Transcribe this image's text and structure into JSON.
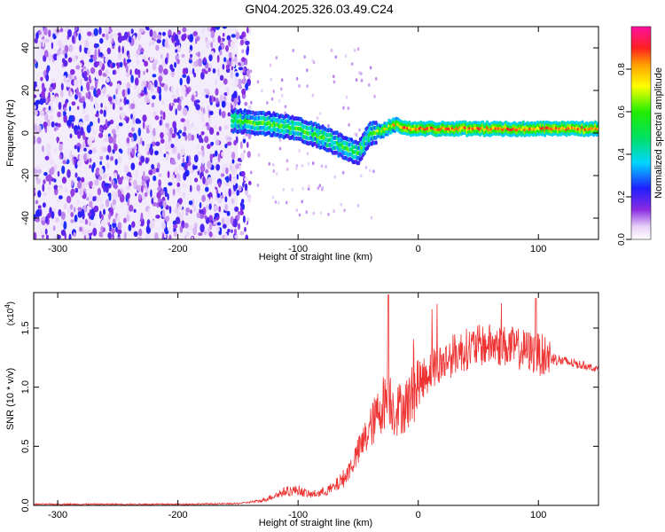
{
  "title": "GN04.2025.326.03.49.C24",
  "chart_data": [
    {
      "type": "heatmap",
      "title": "GN04.2025.326.03.49.C24",
      "xlabel": "Height of straight line (km)",
      "ylabel": "Frequency (Hz)",
      "xlim": [
        -320,
        150
      ],
      "ylim": [
        -50,
        50
      ],
      "xticks": [
        -300,
        -200,
        -100,
        0,
        100
      ],
      "yticks": [
        -40,
        -20,
        0,
        20,
        40
      ],
      "colorbar": {
        "label": "Normalized spectral amplitude",
        "range": [
          0,
          1
        ],
        "ticks": [
          0.0,
          0.2,
          0.4,
          0.6,
          0.8
        ]
      },
      "ridge": {
        "x": [
          -155,
          -140,
          -120,
          -100,
          -80,
          -60,
          -50,
          -45,
          -40,
          -30,
          -20,
          -10,
          0,
          50,
          100,
          150
        ],
        "y": [
          6,
          5,
          4,
          2,
          -2,
          -7,
          -10,
          -5,
          0,
          1,
          4,
          2,
          2,
          2,
          2,
          2
        ]
      }
    },
    {
      "type": "line",
      "xlabel": "Height of straight line (km)",
      "ylabel": "SNR (10 * v/v)",
      "yscale_label": "(x10",
      "yscale_exp": "4",
      "xlim": [
        -320,
        150
      ],
      "ylim": [
        0,
        18000
      ],
      "xticks": [
        -300,
        -200,
        -100,
        0,
        100
      ],
      "yticks": [
        0,
        5000,
        10000,
        15000
      ],
      "ytick_labels": [
        "0.0",
        "0.5",
        "1.0",
        "1.5"
      ],
      "series": [
        {
          "color": "#ee3333",
          "x": [
            -320,
            -200,
            -150,
            -130,
            -110,
            -100,
            -90,
            -80,
            -70,
            -60,
            -50,
            -40,
            -30,
            -25,
            -20,
            -10,
            0,
            10,
            20,
            30,
            40,
            50,
            60,
            70,
            80,
            90,
            100,
            110,
            120,
            130,
            140,
            150
          ],
          "y": [
            100,
            100,
            150,
            400,
            1200,
            1300,
            900,
            1100,
            1500,
            2500,
            4500,
            6500,
            8500,
            9500,
            8000,
            8500,
            10200,
            11500,
            12000,
            12800,
            13200,
            13500,
            13600,
            13500,
            13300,
            13100,
            12800,
            12500,
            12200,
            12000,
            11800,
            11500
          ]
        }
      ]
    }
  ]
}
